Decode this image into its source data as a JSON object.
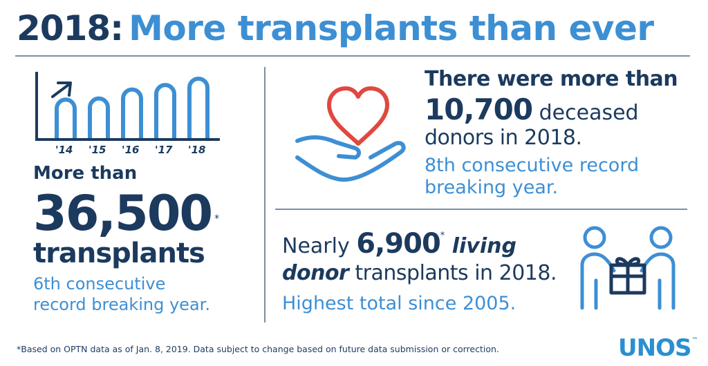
{
  "title": {
    "year": "2018:",
    "rest": "More transplants than ever"
  },
  "chart_data": {
    "type": "bar",
    "categories": [
      "'14",
      "'15",
      "'16",
      "'17",
      "'18"
    ],
    "values": [
      30.9,
      31.2,
      33.6,
      34.8,
      36.5
    ],
    "title": "",
    "xlabel": "",
    "ylabel": "",
    "ylim": [
      0,
      40
    ]
  },
  "left": {
    "more_than": "More than",
    "number": "36,500",
    "asterisk": "*",
    "transplants": "transplants",
    "sub_line1": "6th consecutive",
    "sub_line2": "record breaking year."
  },
  "right_top": {
    "line1": "There were more than",
    "number": "10,700",
    "line2_rest": " deceased",
    "line3": "donors in 2018.",
    "sub_line1": "8th consecutive record",
    "sub_line2": "breaking year."
  },
  "right_bottom": {
    "nearly": "Nearly ",
    "number": "6,900",
    "asterisk": "*",
    "living": " living",
    "donor": "donor",
    "line2_rest": " transplants in 2018.",
    "sub": "Highest total since 2005."
  },
  "footnote": "*Based on OPTN data as of Jan. 8, 2019. Data subject to change based on future data submission or correction.",
  "logo": {
    "text": "UNOS",
    "tm": "™"
  },
  "icons": {
    "chart": "bar-chart-icon",
    "heart_hand": "heart-in-hand-icon",
    "people_gift": "people-gift-icon"
  },
  "colors": {
    "dark_navy": "#1c3a5e",
    "blue": "#3d8fd4",
    "red": "#e0483f",
    "rule": "#7c8fa3"
  }
}
